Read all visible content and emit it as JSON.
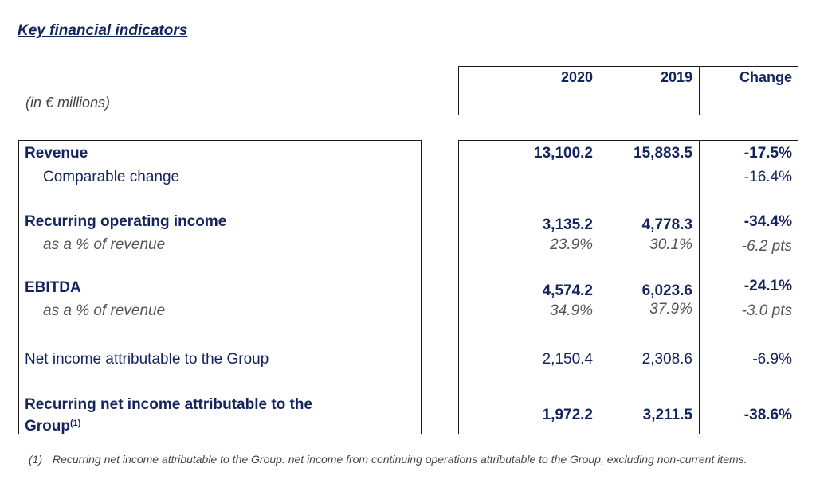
{
  "heading": "Key financial indicators",
  "unit_note": "(in € millions)",
  "columns": {
    "c2020": "2020",
    "c2019": "2019",
    "change": "Change"
  },
  "rows": {
    "revenue": {
      "label": "Revenue",
      "v2020": "13,100.2",
      "v2019": "15,883.5",
      "change": "-17.5%"
    },
    "comparable": {
      "label": "Comparable change",
      "change": "-16.4%"
    },
    "roi": {
      "label": "Recurring operating income",
      "v2020": "3,135.2",
      "v2019": "4,778.3",
      "change": "-34.4%"
    },
    "roi_pct": {
      "label": "as a % of revenue",
      "v2020": "23.9%",
      "v2019": "30.1%",
      "change": "-6.2 pts"
    },
    "ebitda": {
      "label": "EBITDA",
      "v2020": "4,574.2",
      "v2019": "6,023.6",
      "change": "-24.1%"
    },
    "ebitda_pct": {
      "label": "as a % of revenue",
      "v2020": "34.9%",
      "v2019": "37.9%",
      "change": "-3.0 pts"
    },
    "net_income": {
      "label": "Net income attributable to the Group",
      "v2020": "2,150.4",
      "v2019": "2,308.6",
      "change": "-6.9%"
    },
    "recurring_net": {
      "label_line1": "Recurring net income attributable to the",
      "label_line2": "Group",
      "sup": "(1)",
      "v2020": "1,972.2",
      "v2019": "3,211.5",
      "change": "-38.6%"
    }
  },
  "footnote": {
    "mark": "(1)",
    "text": "Recurring net income attributable to the Group: net income from continuing operations attributable to the Group, excluding non-current items."
  }
}
